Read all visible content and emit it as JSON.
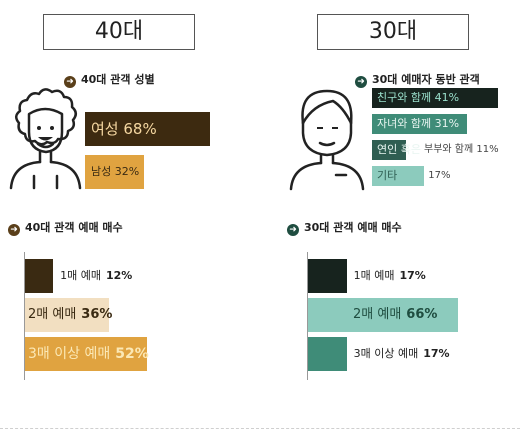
{
  "chart_data": [
    {
      "type": "bar",
      "title": "40대 관객 성별",
      "categories": [
        "여성",
        "남성"
      ],
      "values": [
        68,
        32
      ],
      "labels": [
        "여성 68%",
        "남성 32%"
      ],
      "colors": [
        "#3d2a10",
        "#e0a340"
      ]
    },
    {
      "type": "bar",
      "title": "30대 예매자 동반 관객",
      "categories": [
        "친구와 함께",
        "자녀와 함께",
        "연인 혹은 부부와 함께",
        "기타"
      ],
      "values": [
        41,
        31,
        11,
        17
      ],
      "labels_in": [
        "친구와 함께 41%",
        "자녀와 함께 31%",
        "연인 혹은",
        "기타"
      ],
      "labels_out": [
        "",
        "",
        "부부와 함께 11%",
        "17%"
      ],
      "colors": [
        "#17231e",
        "#3f8c78",
        "#2f5e52",
        "#8ccbbd"
      ]
    },
    {
      "type": "bar",
      "title": "40대 관객 예매 매수",
      "categories": [
        "1매 예매",
        "2매 예매",
        "3매 이상 예매"
      ],
      "values": [
        12,
        36,
        52
      ],
      "label_text": [
        "1매 예매",
        "2매 예매",
        "3매 이상 예매"
      ],
      "label_pct": [
        "12%",
        "36%",
        "52%"
      ],
      "colors": [
        "#3a2a12",
        "#f2dfc1",
        "#e0a340"
      ]
    },
    {
      "type": "bar",
      "title": "30대 관객 예매 매수",
      "categories": [
        "1매 예매",
        "2매 예매",
        "3매 이상 예매"
      ],
      "values": [
        17,
        66,
        17
      ],
      "label_text": [
        "1매 예매",
        "2매 예매",
        "3매 이상 예매"
      ],
      "label_pct": [
        "17%",
        "66%",
        "17%"
      ],
      "colors": [
        "#17231e",
        "#8ccbbd",
        "#3f8c78"
      ]
    }
  ],
  "header_left": "40대",
  "header_right": "30대",
  "icons": {
    "person_woman": "woman-curly-hair-icon",
    "person_man": "man-icon",
    "arrow": "circle-arrow-right-icon"
  },
  "accent_brown": "#5a3f1a",
  "accent_green": "#1f4d40"
}
